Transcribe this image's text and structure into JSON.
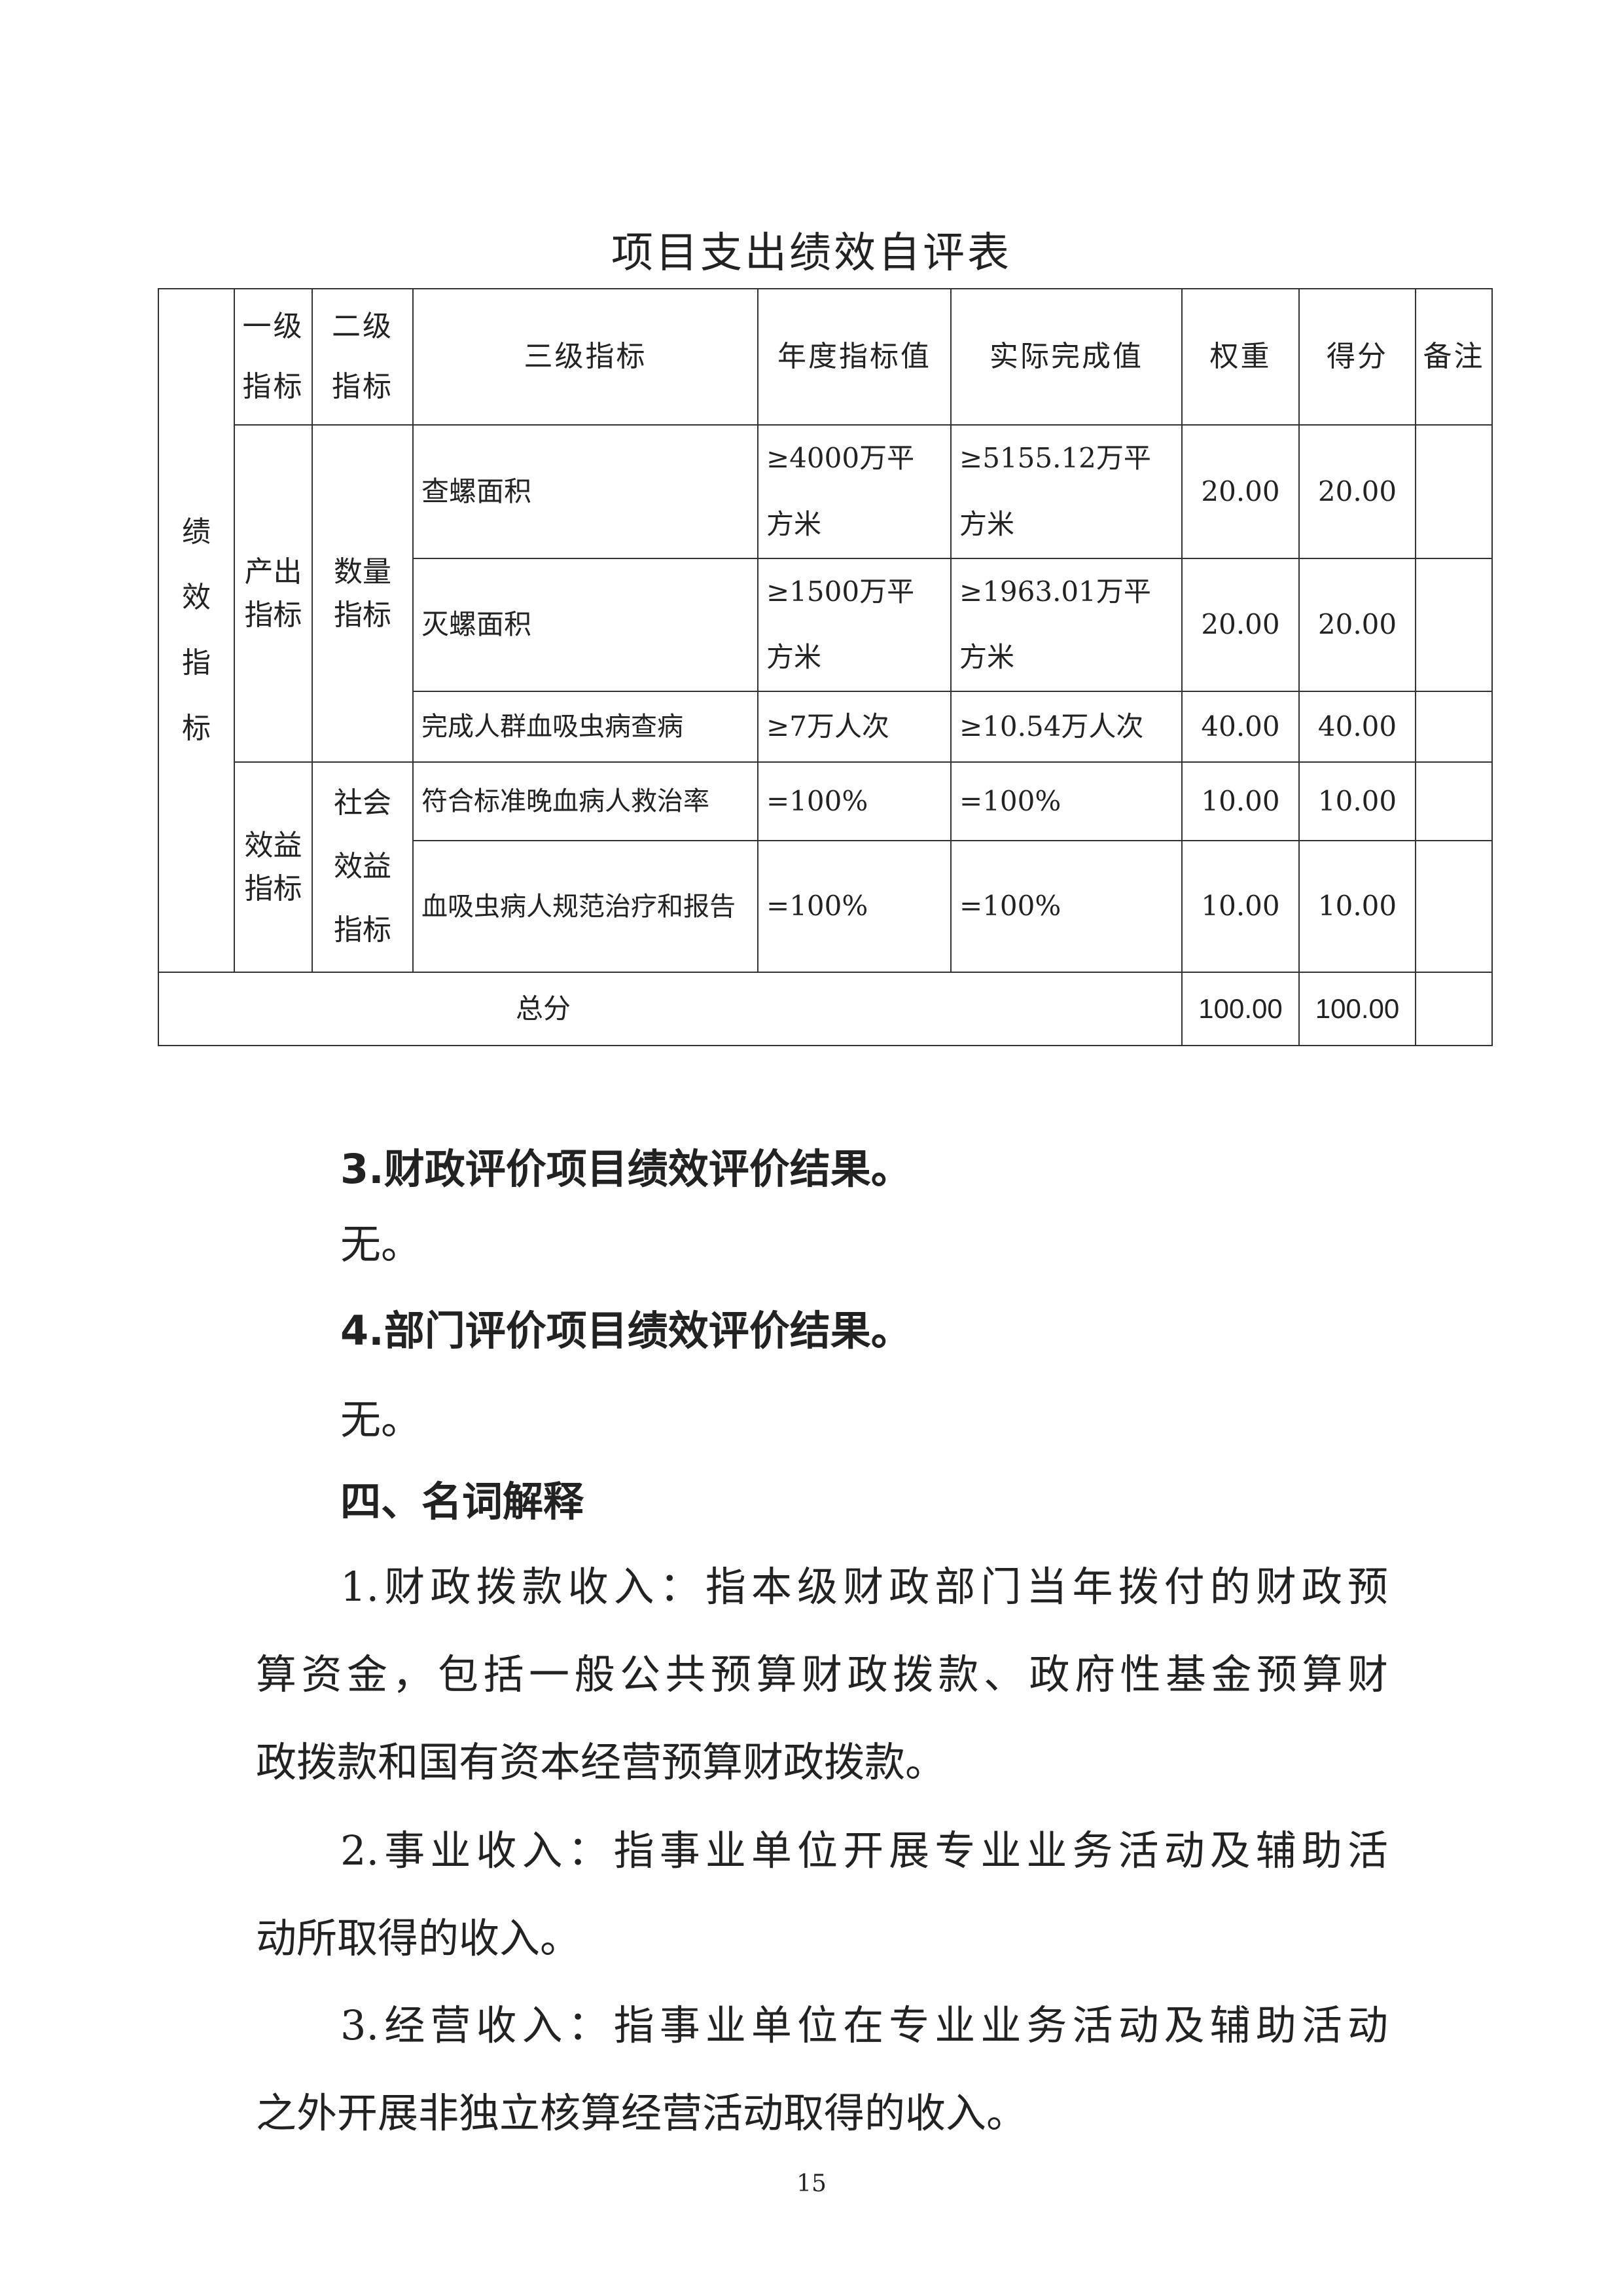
{
  "title": "项目支出绩效自评表",
  "table": {
    "group_label": "绩效指标",
    "headers": {
      "level1": [
        "一级",
        "指标"
      ],
      "level2": [
        "二级",
        "指标"
      ],
      "level3": "三级指标",
      "target": "年度指标值",
      "actual": "实际完成值",
      "weight": "权重",
      "score": "得分",
      "note": "备注"
    },
    "level1": {
      "output": "产出指标",
      "benefit": "效益指标"
    },
    "level2": {
      "quantity": "数量指标",
      "social": "社会效益指标"
    },
    "rows": [
      {
        "indicator": "查螺面积",
        "target": [
          "≥4000万平",
          "方米"
        ],
        "actual": [
          "≥5155.12万平",
          "方米"
        ],
        "weight": "20.00",
        "score": "20.00",
        "note": ""
      },
      {
        "indicator": "灭螺面积",
        "target": [
          "≥1500万平",
          "方米"
        ],
        "actual": [
          "≥1963.01万平",
          "方米"
        ],
        "weight": "20.00",
        "score": "20.00",
        "note": ""
      },
      {
        "indicator": "完成人群血吸虫病查病",
        "target": [
          "≥7万人次"
        ],
        "actual": [
          "≥10.54万人次"
        ],
        "weight": "40.00",
        "score": "40.00",
        "note": ""
      },
      {
        "indicator": "符合标准晚血病人救治率",
        "target": [
          "=100%"
        ],
        "actual": [
          "=100%"
        ],
        "weight": "10.00",
        "score": "10.00",
        "note": ""
      },
      {
        "indicator": "血吸虫病人规范治疗和报告",
        "target": [
          "=100%"
        ],
        "actual": [
          "=100%"
        ],
        "weight": "10.00",
        "score": "10.00",
        "note": ""
      }
    ],
    "total": {
      "label": "总分",
      "weight": "100.00",
      "score": "100.00"
    }
  },
  "sections": {
    "s3_heading": "3.财政评价项目绩效评价结果。",
    "s3_body": "无。",
    "s4_heading": "4.部门评价项目绩效评价结果。",
    "s4_body": "无。",
    "s_iv_heading": "四、名词解释"
  },
  "definitions": [
    {
      "lines": [
        "1.财政拨款收入：指本级财政部门当年拨付的财政预",
        "算资金，包括一般公共预算财政拨款、政府性基金预算财",
        "政拨款和国有资本经营预算财政拨款。"
      ]
    },
    {
      "lines": [
        "2.事业收入：指事业单位开展专业业务活动及辅助活",
        "动所取得的收入。"
      ]
    },
    {
      "lines": [
        "3.经营收入：指事业单位在专业业务活动及辅助活动",
        "之外开展非独立核算经营活动取得的收入。"
      ]
    }
  ],
  "page_number": "15"
}
